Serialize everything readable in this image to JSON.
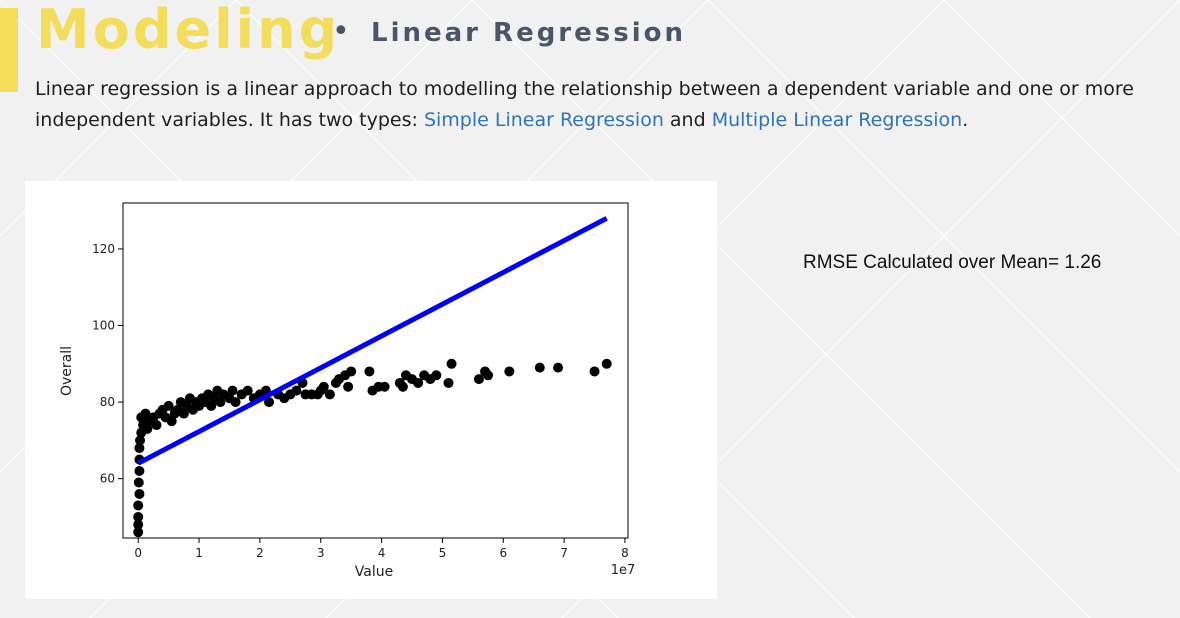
{
  "slide": {
    "title": "Modeling",
    "bullet": "•",
    "subtitle": "Linear Regression",
    "description": {
      "part1": "Linear regression is a linear approach to modelling the relationship between a dependent variable and one or more independent variables. It has two types: ",
      "link1": "Simple Linear Regression",
      "part2": " and ",
      "link2": "Multiple Linear Regression",
      "part3": "."
    },
    "rmse_text": "RMSE Calculated over Mean=  1.26",
    "colors": {
      "title": "#f2de5c",
      "accent": "#f6dd57",
      "link": "#2e75b6"
    }
  },
  "chart_data": {
    "type": "scatter",
    "xlabel": "Value",
    "ylabel": "Overall",
    "x_offset_label": "1e7",
    "xlim": [
      -0.25,
      8.05
    ],
    "ylim": [
      44.5,
      132
    ],
    "x_ticks": [
      0,
      1,
      2,
      3,
      4,
      5,
      6,
      7,
      8
    ],
    "y_ticks": [
      60,
      80,
      100,
      120
    ],
    "grid": false,
    "points_color": "#000000",
    "line_color": "#0000ff",
    "regression_line": {
      "x": [
        0,
        7.7
      ],
      "y": [
        64,
        128
      ]
    },
    "points": [
      [
        0,
        46
      ],
      [
        0,
        48
      ],
      [
        0,
        50
      ],
      [
        0,
        53
      ],
      [
        0.02,
        56
      ],
      [
        0.01,
        59
      ],
      [
        0.02,
        62
      ],
      [
        0.02,
        65
      ],
      [
        0.02,
        68
      ],
      [
        0.03,
        70
      ],
      [
        0.05,
        72
      ],
      [
        0.08,
        74
      ],
      [
        0.1,
        75
      ],
      [
        0.05,
        76
      ],
      [
        0.12,
        77
      ],
      [
        0.15,
        73
      ],
      [
        0.2,
        75
      ],
      [
        0.25,
        76
      ],
      [
        0.3,
        74
      ],
      [
        0.35,
        77
      ],
      [
        0.4,
        78
      ],
      [
        0.45,
        76
      ],
      [
        0.5,
        79
      ],
      [
        0.55,
        75
      ],
      [
        0.6,
        77
      ],
      [
        0.65,
        78
      ],
      [
        0.7,
        80
      ],
      [
        0.75,
        77
      ],
      [
        0.8,
        79
      ],
      [
        0.85,
        81
      ],
      [
        0.9,
        78
      ],
      [
        0.95,
        80
      ],
      [
        1.0,
        79
      ],
      [
        1.05,
        81
      ],
      [
        1.1,
        80
      ],
      [
        1.15,
        82
      ],
      [
        1.2,
        79
      ],
      [
        1.25,
        81
      ],
      [
        1.3,
        83
      ],
      [
        1.35,
        80
      ],
      [
        1.4,
        82
      ],
      [
        1.5,
        81
      ],
      [
        1.55,
        83
      ],
      [
        1.6,
        80
      ],
      [
        1.7,
        82
      ],
      [
        1.8,
        83
      ],
      [
        1.9,
        81
      ],
      [
        2.0,
        82
      ],
      [
        2.1,
        83
      ],
      [
        2.15,
        80
      ],
      [
        2.3,
        82
      ],
      [
        2.4,
        81
      ],
      [
        2.5,
        82
      ],
      [
        2.6,
        83
      ],
      [
        2.7,
        85
      ],
      [
        2.75,
        82
      ],
      [
        2.85,
        82
      ],
      [
        2.95,
        82
      ],
      [
        3.0,
        83
      ],
      [
        3.05,
        84
      ],
      [
        3.15,
        82
      ],
      [
        3.25,
        85
      ],
      [
        3.3,
        86
      ],
      [
        3.4,
        87
      ],
      [
        3.45,
        84
      ],
      [
        3.5,
        88
      ],
      [
        3.8,
        88
      ],
      [
        3.85,
        83
      ],
      [
        3.95,
        84
      ],
      [
        4.05,
        84
      ],
      [
        4.3,
        85
      ],
      [
        4.35,
        84
      ],
      [
        4.4,
        87
      ],
      [
        4.5,
        86
      ],
      [
        4.6,
        85
      ],
      [
        4.7,
        87
      ],
      [
        4.8,
        86
      ],
      [
        4.9,
        87
      ],
      [
        5.1,
        85
      ],
      [
        5.15,
        90
      ],
      [
        5.6,
        86
      ],
      [
        5.7,
        88
      ],
      [
        5.75,
        87
      ],
      [
        6.1,
        88
      ],
      [
        6.6,
        89
      ],
      [
        6.9,
        89
      ],
      [
        7.5,
        88
      ],
      [
        7.7,
        90
      ]
    ]
  }
}
